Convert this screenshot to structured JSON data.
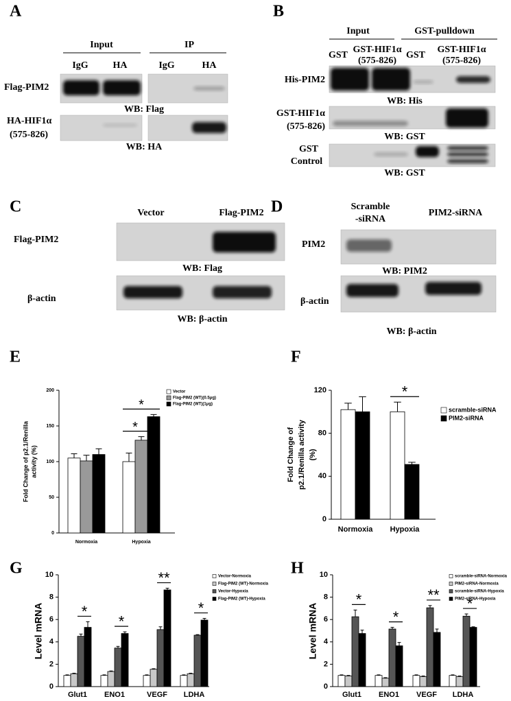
{
  "panels": {
    "A": {
      "label": "A",
      "headers": [
        "Input",
        "IP"
      ],
      "lanes": [
        "IgG",
        "HA",
        "IgG",
        "HA"
      ],
      "rows": [
        {
          "name": [
            "Flag-PIM2"
          ],
          "wb": "WB: Flag"
        },
        {
          "name": [
            "HA-HIF1α",
            "(575-826)"
          ],
          "wb": "WB: HA"
        }
      ]
    },
    "B": {
      "label": "B",
      "headers": [
        "Input",
        "GST-pulldown"
      ],
      "lanes": [
        [
          "GST"
        ],
        [
          "GST-HIF1α",
          "(575-826)"
        ],
        [
          "GST"
        ],
        [
          "GST-HIF1α",
          "(575-826)"
        ]
      ],
      "rows": [
        {
          "name": [
            "His-PIM2"
          ],
          "wb": "WB: His"
        },
        {
          "name": [
            "GST-HIF1α",
            "(575-826)"
          ],
          "wb": "WB: GST"
        },
        {
          "name": [
            "GST",
            "Control"
          ],
          "wb": "WB: GST"
        }
      ]
    },
    "C": {
      "label": "C",
      "lanes": [
        [
          "Vector"
        ],
        [
          "Flag-PIM2"
        ]
      ],
      "rows": [
        {
          "name": [
            "Flag-PIM2"
          ],
          "wb": "WB: Flag"
        },
        {
          "name": [
            "β-actin"
          ],
          "wb": "WB: β-actin"
        }
      ]
    },
    "D": {
      "label": "D",
      "lanes": [
        [
          "Scramble",
          "-siRNA"
        ],
        [
          "PIM2-siRNA"
        ]
      ],
      "rows": [
        {
          "name": [
            "PIM2"
          ],
          "wb": "WB: PIM2"
        },
        {
          "name": [
            "β-actin"
          ],
          "wb": "WB: β-actin"
        }
      ]
    }
  },
  "chart_data": [
    {
      "type": "bar",
      "label": "E",
      "ylabel": [
        "Fold Change of p2.1/Renilla",
        "activity (%)"
      ],
      "categories": [
        "Normoxia",
        "Hypoxia"
      ],
      "ylim": [
        0,
        200
      ],
      "yticks": [
        0,
        50,
        100,
        150,
        200
      ],
      "series": [
        {
          "name": "Vector",
          "color": "#ffffff",
          "values": [
            105,
            100
          ],
          "errors": [
            6,
            12
          ]
        },
        {
          "name": "Flag-PIM2 (WT)(0.5μg)",
          "color": "#999999",
          "values": [
            101,
            130
          ],
          "errors": [
            8,
            5
          ]
        },
        {
          "name": "Flag-PIM2 (WT)(1μg)",
          "color": "#000000",
          "values": [
            110,
            163
          ],
          "errors": [
            8,
            3
          ]
        }
      ],
      "annotations": [
        "*",
        "*"
      ]
    },
    {
      "type": "bar",
      "label": "F",
      "ylabel": [
        "Fold Change of",
        "p2.1/Renilla activity",
        "(%)"
      ],
      "categories": [
        "Normoxia",
        "Hypoxia"
      ],
      "ylim": [
        0,
        120
      ],
      "yticks": [
        0,
        40,
        80,
        120
      ],
      "series": [
        {
          "name": "scramble-siRNA",
          "color": "#ffffff",
          "values": [
            102,
            100
          ],
          "errors": [
            6,
            9
          ]
        },
        {
          "name": "PIM2-siRNA",
          "color": "#000000",
          "values": [
            100,
            51
          ],
          "errors": [
            14,
            2
          ]
        }
      ],
      "annotations": [
        "*"
      ]
    },
    {
      "type": "bar",
      "label": "G",
      "ylabel": [
        "Level mRNA"
      ],
      "categories": [
        "Glut1",
        "ENO1",
        "VEGF",
        "LDHA"
      ],
      "ylim": [
        0,
        10
      ],
      "yticks": [
        0,
        2,
        4,
        6,
        8,
        10
      ],
      "series": [
        {
          "name": "Vector-Normoxia",
          "color": "#ffffff",
          "values": [
            1,
            1,
            1,
            1
          ],
          "errors": [
            0.05,
            0.05,
            0.05,
            0.05
          ]
        },
        {
          "name": "Flag-PIM2 (WT)-Normoxia",
          "color": "#c8c8c8",
          "values": [
            1.15,
            1.35,
            1.55,
            1.15
          ],
          "errors": [
            0.05,
            0.05,
            0.05,
            0.05
          ]
        },
        {
          "name": "Vector-Hypoxia",
          "color": "#555555",
          "values": [
            4.5,
            3.45,
            5.1,
            4.6
          ],
          "errors": [
            0.2,
            0.15,
            0.25,
            0.05
          ]
        },
        {
          "name": "Flag-PIM2 (WT)-Hypoxia",
          "color": "#000000",
          "values": [
            5.3,
            4.75,
            8.65,
            5.95
          ],
          "errors": [
            0.5,
            0.15,
            0.15,
            0.15
          ]
        }
      ],
      "annotations": [
        "*",
        "*",
        "**",
        "*"
      ]
    },
    {
      "type": "bar",
      "label": "H",
      "ylabel": [
        "Level mRNA"
      ],
      "categories": [
        "Glut1",
        "ENO1",
        "VEGF",
        "LDHA"
      ],
      "ylim": [
        0,
        10
      ],
      "yticks": [
        0,
        2,
        4,
        6,
        8,
        10
      ],
      "series": [
        {
          "name": "scramble-siRNA-Normoxia",
          "color": "#ffffff",
          "values": [
            1,
            1,
            1,
            1
          ],
          "errors": [
            0.05,
            0.05,
            0.05,
            0.05
          ]
        },
        {
          "name": "PIM2-siRNA-Normoxia",
          "color": "#c8c8c8",
          "values": [
            0.95,
            0.75,
            0.9,
            0.9
          ],
          "errors": [
            0.05,
            0.05,
            0.05,
            0.05
          ]
        },
        {
          "name": "scramble-siRNA-Hypoxia",
          "color": "#555555",
          "values": [
            6.25,
            5.15,
            7.05,
            6.3
          ],
          "errors": [
            0.6,
            0.15,
            0.2,
            0.2
          ]
        },
        {
          "name": "PIM2-siRNA-Hypoxia",
          "color": "#000000",
          "values": [
            4.75,
            3.65,
            4.85,
            5.3
          ],
          "errors": [
            0.3,
            0.3,
            0.3,
            0.05
          ]
        }
      ],
      "annotations": [
        "*",
        "*",
        "**",
        "*"
      ]
    }
  ]
}
